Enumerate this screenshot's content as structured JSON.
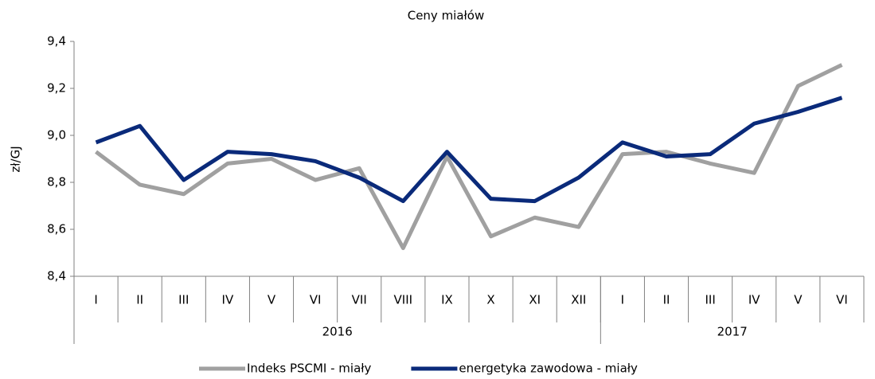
{
  "chart_data": {
    "type": "line",
    "title": "Ceny miałów",
    "y_label": "zł/GJ",
    "category_groups": [
      {
        "label": "2016",
        "categories": [
          "I",
          "II",
          "III",
          "IV",
          "V",
          "VI",
          "VII",
          "VIII",
          "IX",
          "X",
          "XI",
          "XII"
        ]
      },
      {
        "label": "2017",
        "categories": [
          "I",
          "II",
          "III",
          "IV",
          "V",
          "VI"
        ]
      }
    ],
    "series": [
      {
        "name": "Indeks PSCMI - miały",
        "color": "#a0a0a0",
        "values": [
          8.93,
          8.79,
          8.75,
          8.88,
          8.9,
          8.81,
          8.86,
          8.52,
          8.91,
          8.57,
          8.65,
          8.61,
          8.92,
          8.93,
          8.88,
          8.84,
          9.21,
          9.3
        ]
      },
      {
        "name": "energetyka zawodowa - miały",
        "color": "#0a2a7a",
        "values": [
          8.97,
          9.04,
          8.81,
          8.93,
          8.92,
          8.89,
          8.82,
          8.72,
          8.93,
          8.73,
          8.72,
          8.82,
          8.97,
          8.91,
          8.92,
          9.05,
          9.1,
          9.16
        ]
      }
    ],
    "ylim": [
      8.4,
      9.4
    ],
    "yticks": [
      {
        "value": 8.4,
        "label": "8,4"
      },
      {
        "value": 8.6,
        "label": "8,6"
      },
      {
        "value": 8.8,
        "label": "8,8"
      },
      {
        "value": 9.0,
        "label": "9,0"
      },
      {
        "value": 9.2,
        "label": "9,2"
      },
      {
        "value": 9.4,
        "label": "9,4"
      }
    ],
    "legend": "bottom"
  }
}
